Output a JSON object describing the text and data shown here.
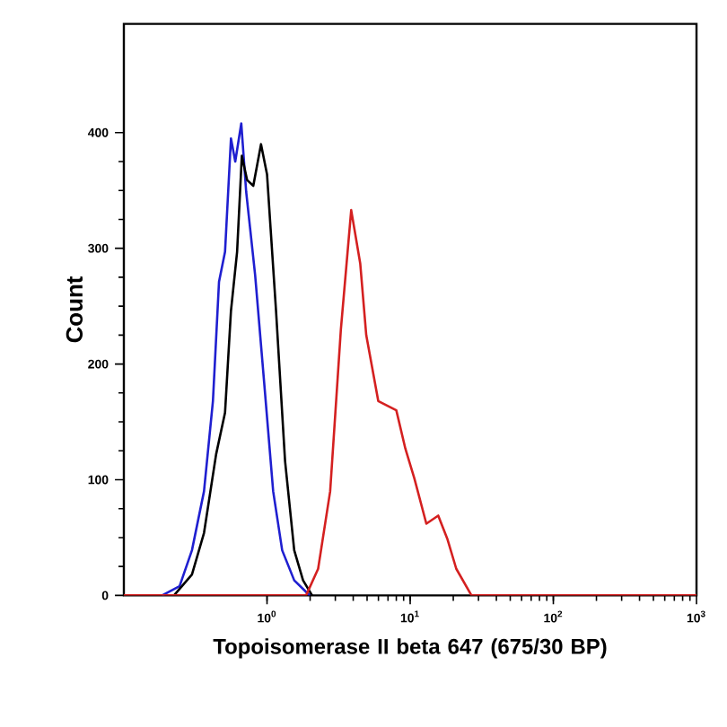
{
  "chart_data": {
    "type": "line",
    "xlabel": "Topoisomerase II beta 647 (675/30 BP)",
    "ylabel": "Count",
    "log": "x",
    "xlim": [
      0.1,
      1000
    ],
    "ylim": [
      0,
      494
    ],
    "xticks": [
      {
        "value": 1,
        "label": "10$^{0}$"
      },
      {
        "value": 10,
        "label": "10$^{1}$"
      },
      {
        "value": 100,
        "label": "10$^{2}$"
      },
      {
        "value": 1000,
        "label": "10$^{3}$"
      }
    ],
    "yticks": [
      0,
      100,
      200,
      300,
      400
    ],
    "grid": false,
    "marker": "none",
    "line_style": "solid",
    "series": [
      {
        "color": "#1f1fd0",
        "x": [
          0.185,
          0.245,
          0.299,
          0.363,
          0.419,
          0.462,
          0.509,
          0.56,
          0.6,
          0.661,
          0.715,
          0.826,
          0.955,
          1.104,
          1.276,
          1.549,
          1.875,
          1.995
        ],
        "values": [
          0,
          8,
          39,
          90,
          168,
          271,
          297,
          395,
          375,
          408,
          349,
          277,
          184,
          90,
          39,
          13,
          3,
          0
        ]
      },
      {
        "color": "#000000",
        "x": [
          0.224,
          0.299,
          0.363,
          0.441,
          0.509,
          0.56,
          0.618,
          0.667,
          0.726,
          0.802,
          0.908,
          1,
          1.156,
          1.337,
          1.549,
          1.786,
          2.065
        ],
        "values": [
          0,
          18,
          54,
          122,
          158,
          246,
          297,
          380,
          359,
          354,
          390,
          364,
          246,
          116,
          39,
          13,
          0
        ]
      },
      {
        "color": "#d42020",
        "x": [
          0.1,
          1.875,
          2.275,
          2.761,
          3.281,
          3.873,
          4.477,
          4.932,
          5.984,
          8.0,
          9.25,
          10.7,
          12.97,
          15.7,
          18.16,
          20.99,
          26.8,
          1000
        ],
        "values": [
          0,
          0,
          23,
          90,
          230,
          333,
          287,
          225,
          168,
          160,
          127,
          101,
          62,
          69,
          49,
          23,
          0,
          0
        ]
      }
    ]
  }
}
